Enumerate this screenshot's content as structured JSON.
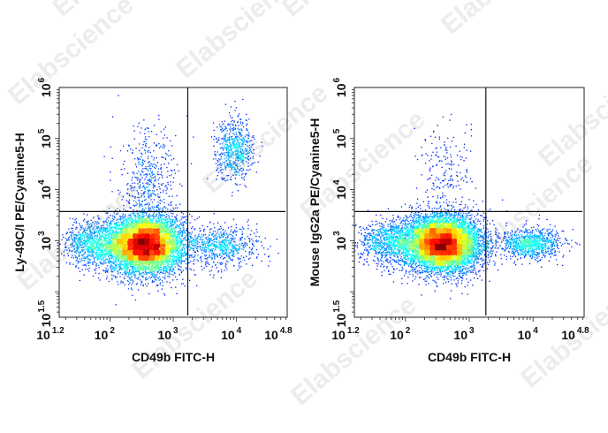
{
  "watermark": "Elabscience",
  "chart_data": [
    {
      "type": "scatter",
      "subtype": "flow cytometry density dot plot with quadrant gates",
      "xlabel": "CD49b FITC-H",
      "ylabel": "Ly-49C/I PE/Cyanine5-H",
      "x_scale": "log10",
      "y_scale": "log10",
      "xlim_log10": [
        1.2,
        4.8
      ],
      "ylim_log10": [
        1.5,
        6
      ],
      "x_ticks": [
        {
          "exp": "1.2",
          "value": 1.2
        },
        {
          "exp": "2",
          "value": 2
        },
        {
          "exp": "3",
          "value": 3
        },
        {
          "exp": "4",
          "value": 4
        },
        {
          "exp": "4.8",
          "value": 4.8
        }
      ],
      "y_ticks": [
        {
          "exp": "1.5",
          "value": 1.5
        },
        {
          "exp": "3",
          "value": 3
        },
        {
          "exp": "4",
          "value": 4
        },
        {
          "exp": "5",
          "value": 5
        },
        {
          "exp": "6",
          "value": 6
        }
      ],
      "gate_x_log10": 3.23,
      "gate_y_log10": 3.57,
      "colormap": "jet (blue low density → red high density)",
      "populations": [
        {
          "cx": 2.55,
          "cy": 2.93,
          "sx": 0.3,
          "sy": 0.28,
          "n": 7000
        },
        {
          "cx": 1.75,
          "cy": 2.95,
          "sx": 0.25,
          "sy": 0.22,
          "n": 900
        },
        {
          "cx": 2.6,
          "cy": 4.1,
          "sx": 0.22,
          "sy": 0.55,
          "n": 500
        },
        {
          "cx": 3.97,
          "cy": 4.8,
          "sx": 0.15,
          "sy": 0.3,
          "n": 650
        },
        {
          "cx": 3.75,
          "cy": 2.9,
          "sx": 0.3,
          "sy": 0.2,
          "n": 700
        }
      ]
    },
    {
      "type": "scatter",
      "subtype": "flow cytometry density dot plot with quadrant gates",
      "xlabel": "CD49b FITC-H",
      "ylabel": "Mouse IgG2a PE/Cyanine5-H",
      "x_scale": "log10",
      "y_scale": "log10",
      "xlim_log10": [
        1.2,
        4.8
      ],
      "ylim_log10": [
        1.5,
        6
      ],
      "x_ticks": [
        {
          "exp": "1.2",
          "value": 1.2
        },
        {
          "exp": "2",
          "value": 2
        },
        {
          "exp": "3",
          "value": 3
        },
        {
          "exp": "4",
          "value": 4
        },
        {
          "exp": "4.8",
          "value": 4.8
        }
      ],
      "y_ticks": [
        {
          "exp": "1.5",
          "value": 1.5
        },
        {
          "exp": "3",
          "value": 3
        },
        {
          "exp": "4",
          "value": 4
        },
        {
          "exp": "5",
          "value": 5
        },
        {
          "exp": "6",
          "value": 6
        }
      ],
      "gate_x_log10": 3.26,
      "gate_y_log10": 3.57,
      "colormap": "jet (blue low density → red high density)",
      "populations": [
        {
          "cx": 2.57,
          "cy": 2.95,
          "sx": 0.3,
          "sy": 0.27,
          "n": 7800
        },
        {
          "cx": 1.75,
          "cy": 2.95,
          "sx": 0.25,
          "sy": 0.22,
          "n": 900
        },
        {
          "cx": 2.6,
          "cy": 4.2,
          "sx": 0.2,
          "sy": 0.55,
          "n": 220
        },
        {
          "cx": 3.95,
          "cy": 2.95,
          "sx": 0.25,
          "sy": 0.15,
          "n": 900
        }
      ]
    }
  ]
}
